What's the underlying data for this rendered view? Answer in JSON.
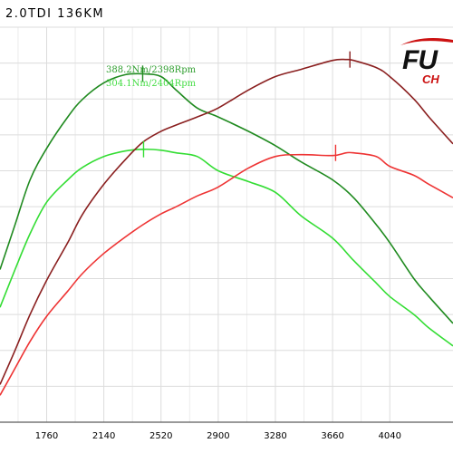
{
  "header": {
    "title": "2.0TDI 136KM"
  },
  "logo": {
    "main_text": "FU",
    "sub_text": "CH"
  },
  "chart_data": {
    "type": "line",
    "title": "",
    "xlabel": "",
    "ylabel": "",
    "x_ticks": [
      "1760",
      "2140",
      "2520",
      "2900",
      "3280",
      "3660",
      "4040"
    ],
    "xlim": [
      1450,
      4460
    ],
    "ylim": [
      0,
      440
    ],
    "grid": true,
    "annotations": [
      {
        "text": "388.2Nm/2398Rpm",
        "color": "#2e9e2e"
      },
      {
        "text": "304.1Nm/2404Rpm",
        "color": "#44dd44"
      }
    ],
    "series": [
      {
        "color": "#1f8a1f",
        "x": [
          1450,
          1550,
          1650,
          1760,
          1900,
          2000,
          2140,
          2280,
          2400,
          2520,
          2620,
          2760,
          2900,
          3100,
          3280,
          3450,
          3660,
          3800,
          3950,
          4040,
          4200,
          4300,
          4460
        ],
        "y": [
          170,
          220,
          270,
          305,
          340,
          360,
          378,
          387,
          388,
          385,
          370,
          350,
          340,
          324,
          308,
          290,
          270,
          250,
          220,
          200,
          160,
          140,
          110
        ]
      },
      {
        "color": "#33dd33",
        "x": [
          1450,
          1550,
          1650,
          1760,
          1900,
          2000,
          2140,
          2280,
          2404,
          2520,
          2620,
          2760,
          2900,
          3100,
          3280,
          3450,
          3660,
          3800,
          3950,
          4040,
          4200,
          4300,
          4460
        ],
        "y": [
          128,
          170,
          210,
          245,
          270,
          284,
          296,
          302,
          304,
          303,
          300,
          296,
          280,
          268,
          256,
          230,
          205,
          180,
          155,
          140,
          120,
          105,
          85
        ]
      },
      {
        "color": "#8a1f1f",
        "x": [
          1450,
          1550,
          1650,
          1760,
          1900,
          2000,
          2140,
          2280,
          2400,
          2520,
          2620,
          2760,
          2900,
          3100,
          3280,
          3450,
          3660,
          3750,
          3800,
          3950,
          4040,
          4200,
          4300,
          4460
        ],
        "y": [
          42,
          80,
          120,
          158,
          200,
          232,
          265,
          292,
          312,
          324,
          331,
          340,
          350,
          370,
          385,
          393,
          403,
          404,
          403,
          395,
          385,
          360,
          340,
          310
        ]
      },
      {
        "color": "#ee3333",
        "x": [
          1450,
          1550,
          1650,
          1760,
          1900,
          2000,
          2140,
          2280,
          2400,
          2520,
          2620,
          2760,
          2900,
          3100,
          3280,
          3450,
          3660,
          3750,
          3800,
          3950,
          4040,
          4200,
          4300,
          4460
        ],
        "y": [
          30,
          60,
          90,
          118,
          146,
          166,
          188,
          206,
          220,
          232,
          240,
          252,
          262,
          283,
          296,
          298,
          297,
          300,
          300,
          296,
          285,
          275,
          265,
          250
        ]
      }
    ],
    "peak_markers": [
      {
        "series": 0,
        "x": 2398,
        "y": 388.2
      },
      {
        "series": 1,
        "x": 2404,
        "y": 304.1
      },
      {
        "series": 2,
        "x": 3775,
        "y": 404
      },
      {
        "series": 3,
        "x": 3680,
        "y": 300
      }
    ]
  }
}
